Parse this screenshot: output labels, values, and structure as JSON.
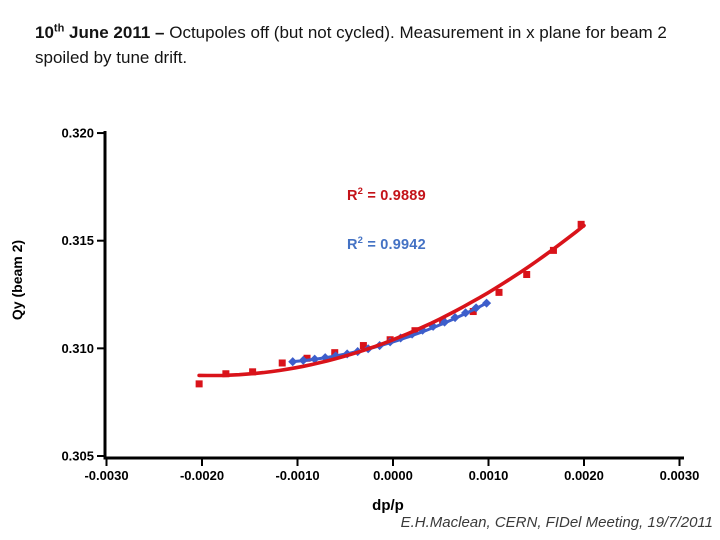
{
  "slide": {
    "title": {
      "day": "10",
      "day_suffix": "th",
      "bold_rest": " June 2011 – ",
      "rest": "Octupoles off (but not cycled). Measurement in x plane for beam 2 spoiled by tune drift."
    },
    "footer": "E.H.Maclean, CERN, FIDel Meeting, 19/7/2011"
  },
  "colors": {
    "red_series": "#d9131a",
    "blue_series": "#3d5ecb",
    "red_text": "#c41319",
    "blue_text": "#4472c4",
    "axis": "#000000",
    "title_text": "#141414",
    "footer_text": "#3a3a3a"
  },
  "chart_data": {
    "type": "scatter",
    "title": "",
    "xlabel": "dp/p",
    "ylabel": "Qy (beam 2)",
    "xlim": [
      -0.003,
      0.003
    ],
    "ylim": [
      0.305,
      0.32
    ],
    "grid": false,
    "legend": "none",
    "x_ticks": [
      -0.003,
      -0.002,
      -0.001,
      0.0,
      0.001,
      0.002,
      0.003
    ],
    "x_tick_labels": [
      "-0.0030",
      "-0.0020",
      "-0.0010",
      "0.0000",
      "0.0010",
      "0.0020",
      "0.0030"
    ],
    "y_ticks": [
      0.305,
      0.31,
      0.315,
      0.32
    ],
    "y_tick_labels": [
      "0.305",
      "0.310",
      "0.315",
      "0.320"
    ],
    "series": [
      {
        "name": "measurement red squares",
        "marker": "square",
        "color": "#d9131a",
        "r2": {
          "prefix": "R",
          "sup": "2",
          "rest": " = 0.9889"
        },
        "points": [
          [
            -0.00203,
            0.30835
          ],
          [
            -0.00175,
            0.30882
          ],
          [
            -0.00147,
            0.30891
          ],
          [
            -0.00116,
            0.30932
          ],
          [
            -0.0009,
            0.30954
          ],
          [
            -0.00061,
            0.3098
          ],
          [
            -0.00031,
            0.31013
          ],
          [
            -3e-05,
            0.3104
          ],
          [
            0.00023,
            0.31082
          ],
          [
            0.00052,
            0.31124
          ],
          [
            0.00084,
            0.31171
          ],
          [
            0.00111,
            0.3126
          ],
          [
            0.0014,
            0.31343
          ],
          [
            0.00168,
            0.31455
          ],
          [
            0.00197,
            0.31576
          ]
        ],
        "trend": {
          "type": "quadratic",
          "a": 0.3104,
          "b": 1.7416,
          "c": 455.8,
          "x_start": -0.00203,
          "x_end": 0.002,
          "width": 3.6
        }
      },
      {
        "name": "measurement blue diamonds",
        "marker": "diamond",
        "color": "#3d5ecb",
        "r2": {
          "prefix": "R",
          "sup": "2",
          "rest": " = 0.9942"
        },
        "points": [
          [
            -0.00105,
            0.30938
          ],
          [
            -0.00094,
            0.30944
          ],
          [
            -0.00082,
            0.3095
          ],
          [
            -0.00071,
            0.30957
          ],
          [
            -0.0006,
            0.30965
          ],
          [
            -0.00048,
            0.30974
          ],
          [
            -0.00037,
            0.30985
          ],
          [
            -0.00026,
            0.30998
          ],
          [
            -0.00014,
            0.31013
          ],
          [
            -3e-05,
            0.3103
          ],
          [
            8e-05,
            0.31048
          ],
          [
            0.0002,
            0.31066
          ],
          [
            0.00031,
            0.31084
          ],
          [
            0.00042,
            0.31102
          ],
          [
            0.00054,
            0.31122
          ],
          [
            0.00065,
            0.31143
          ],
          [
            0.00076,
            0.31165
          ],
          [
            0.00087,
            0.31188
          ],
          [
            0.00098,
            0.3121
          ]
        ],
        "trend": {
          "type": "quadratic",
          "a": 0.3103,
          "b": 1.373,
          "c": 473.3,
          "x_start": -0.00105,
          "x_end": 0.00098,
          "width": 3
        }
      }
    ]
  }
}
